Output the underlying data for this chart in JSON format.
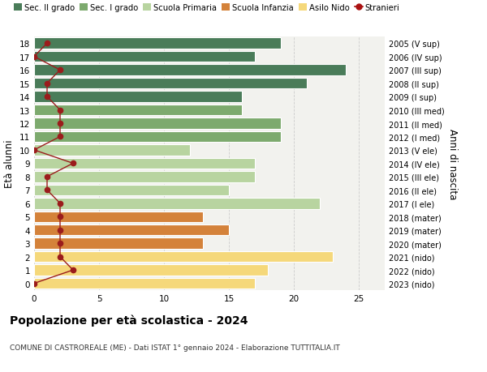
{
  "ages": [
    18,
    17,
    16,
    15,
    14,
    13,
    12,
    11,
    10,
    9,
    8,
    7,
    6,
    5,
    4,
    3,
    2,
    1,
    0
  ],
  "right_labels": [
    "2005 (V sup)",
    "2006 (IV sup)",
    "2007 (III sup)",
    "2008 (II sup)",
    "2009 (I sup)",
    "2010 (III med)",
    "2011 (II med)",
    "2012 (I med)",
    "2013 (V ele)",
    "2014 (IV ele)",
    "2015 (III ele)",
    "2016 (II ele)",
    "2017 (I ele)",
    "2018 (mater)",
    "2019 (mater)",
    "2020 (mater)",
    "2021 (nido)",
    "2022 (nido)",
    "2023 (nido)"
  ],
  "bar_values": [
    19,
    17,
    24,
    21,
    16,
    16,
    19,
    19,
    12,
    17,
    17,
    15,
    22,
    13,
    15,
    13,
    23,
    18,
    17
  ],
  "bar_colors": [
    "#4a7c59",
    "#4a7c59",
    "#4a7c59",
    "#4a7c59",
    "#4a7c59",
    "#7daa6e",
    "#7daa6e",
    "#7daa6e",
    "#b8d4a0",
    "#b8d4a0",
    "#b8d4a0",
    "#b8d4a0",
    "#b8d4a0",
    "#d4823a",
    "#d4823a",
    "#d4823a",
    "#f5d87a",
    "#f5d87a",
    "#f5d87a"
  ],
  "stranieri_values": [
    1,
    0,
    2,
    1,
    1,
    2,
    2,
    2,
    0,
    3,
    1,
    1,
    2,
    2,
    2,
    2,
    2,
    3,
    0
  ],
  "title": "Popolazione per età scolastica - 2024",
  "subtitle": "COMUNE DI CASTROREALE (ME) - Dati ISTAT 1° gennaio 2024 - Elaborazione TUTTITALIA.IT",
  "ylabel": "Età alunni",
  "ylabel_right": "Anni di nascita",
  "legend_labels": [
    "Sec. II grado",
    "Sec. I grado",
    "Scuola Primaria",
    "Scuola Infanzia",
    "Asilo Nido",
    "Stranieri"
  ],
  "legend_colors": [
    "#4a7c59",
    "#7daa6e",
    "#b8d4a0",
    "#d4823a",
    "#f5d87a",
    "#aa1111"
  ],
  "xlim": [
    0,
    27
  ],
  "plot_bg_color": "#f2f2ee",
  "fig_bg_color": "#ffffff",
  "grid_color": "#cccccc",
  "stranieri_line_color": "#9b1c1c",
  "xticks": [
    0,
    5,
    10,
    15,
    20,
    25
  ]
}
